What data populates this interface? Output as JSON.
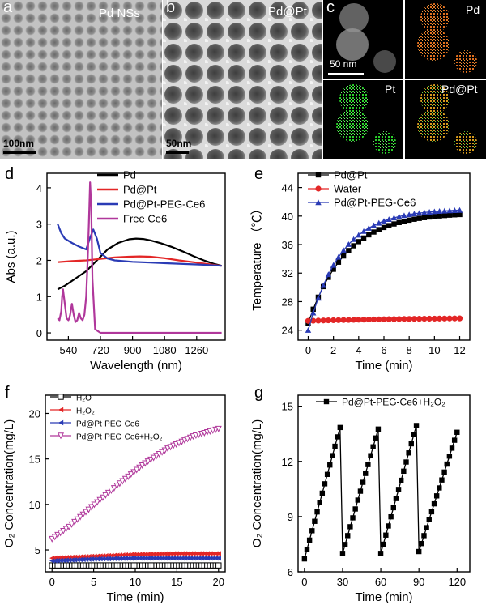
{
  "panels": {
    "a": {
      "letter": "a",
      "label": "Pd NSs",
      "scale": "100nm"
    },
    "b": {
      "letter": "b",
      "label": "Pd@Pt",
      "scale": "50nm"
    },
    "c": {
      "letter": "c",
      "scale": "50 nm",
      "maps": [
        "",
        "Pd",
        "Pt",
        "Pd@Pt"
      ]
    },
    "d": {
      "letter": "d"
    },
    "e": {
      "letter": "e"
    },
    "f": {
      "letter": "f"
    },
    "g": {
      "letter": "g"
    }
  },
  "chart_data": [
    {
      "id": "d",
      "type": "line",
      "xlabel": "Wavelength (nm)",
      "ylabel": "Abs (a.u.)",
      "xlim": [
        420,
        1420
      ],
      "ylim": [
        -0.2,
        4.4
      ],
      "xticks": [
        540,
        720,
        900,
        1080,
        1260
      ],
      "yticks": [
        0,
        1,
        2,
        3,
        4
      ],
      "legend_position": "top-right",
      "series": [
        {
          "name": "Pd",
          "color": "#000000",
          "x": [
            480,
            520,
            580,
            640,
            700,
            760,
            820,
            880,
            920,
            960,
            1000,
            1060,
            1120,
            1180,
            1240,
            1300,
            1360,
            1400
          ],
          "y": [
            1.2,
            1.3,
            1.5,
            1.7,
            2.0,
            2.3,
            2.48,
            2.58,
            2.6,
            2.59,
            2.55,
            2.47,
            2.37,
            2.25,
            2.12,
            2.0,
            1.9,
            1.85
          ]
        },
        {
          "name": "Pd@Pt",
          "color": "#e32626",
          "x": [
            480,
            560,
            640,
            720,
            800,
            880,
            940,
            1000,
            1080,
            1160,
            1240,
            1320,
            1400
          ],
          "y": [
            1.95,
            1.98,
            2.0,
            2.04,
            2.08,
            2.1,
            2.11,
            2.1,
            2.06,
            2.0,
            1.95,
            1.9,
            1.85
          ]
        },
        {
          "name": "Pd@Pt-PEG-Ce6",
          "color": "#2a3bb5",
          "x": [
            480,
            500,
            520,
            560,
            600,
            640,
            660,
            680,
            700,
            720,
            760,
            800,
            900,
            1000,
            1100,
            1200,
            1300,
            1400
          ],
          "y": [
            3.0,
            2.75,
            2.6,
            2.48,
            2.38,
            2.3,
            2.6,
            2.85,
            2.6,
            2.2,
            2.05,
            2.0,
            1.96,
            1.94,
            1.92,
            1.9,
            1.88,
            1.85
          ]
        },
        {
          "name": "Free Ce6",
          "color": "#b0379b",
          "x": [
            480,
            490,
            500,
            505,
            510,
            520,
            530,
            540,
            545,
            550,
            560,
            570,
            580,
            590,
            600,
            610,
            620,
            630,
            640,
            648,
            655,
            662,
            668,
            675,
            690,
            720,
            900,
            1100,
            1400
          ],
          "y": [
            0.4,
            0.35,
            0.6,
            1.0,
            1.2,
            0.8,
            0.4,
            0.35,
            0.4,
            0.5,
            0.8,
            0.5,
            0.3,
            0.35,
            0.55,
            0.4,
            0.35,
            0.5,
            1.0,
            2.0,
            3.0,
            4.15,
            3.5,
            1.5,
            0.1,
            0.0,
            0.0,
            0.0,
            0.0
          ]
        }
      ]
    },
    {
      "id": "e",
      "type": "line",
      "xlabel": "Time (min)",
      "ylabel": "Temperature （℃）",
      "xlim": [
        -0.8,
        12.8
      ],
      "ylim": [
        22.6,
        46
      ],
      "xticks": [
        0,
        2,
        4,
        6,
        8,
        10,
        12
      ],
      "yticks": [
        24,
        28,
        32,
        36,
        40,
        44
      ],
      "legend_position": "top-left",
      "series": [
        {
          "name": "Pd@Pt",
          "color": "#000000",
          "marker": "square",
          "model": [
            25,
            40.5,
            3.0
          ]
        },
        {
          "name": "Water",
          "color": "#e32626",
          "marker": "circle",
          "model": [
            25.3,
            25.8,
            10.0
          ]
        },
        {
          "name": "Pd@Pt-PEG-Ce6",
          "color": "#2a3bb5",
          "marker": "triangle",
          "model": [
            24,
            41.0,
            2.6
          ]
        }
      ]
    },
    {
      "id": "f",
      "type": "line",
      "xlabel": "Time (min)",
      "ylabel": "O₂ Concentration(mg/L)",
      "xlim": [
        -0.8,
        20.8
      ],
      "ylim": [
        2.6,
        22
      ],
      "xticks": [
        0,
        5,
        10,
        15,
        20
      ],
      "yticks": [
        5,
        10,
        15,
        20
      ],
      "legend_position": "top-left",
      "series": [
        {
          "name": "H₂O",
          "color": "#000000",
          "marker": "square-open",
          "x": [
            0,
            5,
            10,
            15,
            20
          ],
          "y": [
            3.3,
            3.3,
            3.3,
            3.3,
            3.3
          ]
        },
        {
          "name": "H₂O₂",
          "color": "#e32626",
          "marker": "triangle-left",
          "x": [
            0,
            5,
            10,
            15,
            20
          ],
          "y": [
            4.1,
            4.3,
            4.5,
            4.6,
            4.6
          ]
        },
        {
          "name": "Pd@Pt-PEG-Ce6",
          "color": "#2a3bb5",
          "marker": "triangle-left",
          "x": [
            0,
            5,
            10,
            15,
            20
          ],
          "y": [
            3.8,
            4.0,
            4.1,
            4.1,
            4.1
          ]
        },
        {
          "name": "Pd@Pt-PEG-Ce6+H₂O₂",
          "color": "#b0379b",
          "marker": "triangle-down-open",
          "x": [
            0,
            2,
            5,
            8,
            11,
            14,
            17,
            20
          ],
          "y": [
            6.2,
            7.5,
            9.9,
            12.2,
            14.4,
            16.2,
            17.5,
            18.3
          ]
        }
      ]
    },
    {
      "id": "g",
      "type": "line",
      "xlabel": "Time (min)",
      "ylabel": "O₂ Concentration(mg/L)",
      "xlim": [
        -5,
        130
      ],
      "ylim": [
        6,
        15.6
      ],
      "xticks": [
        0,
        30,
        60,
        90,
        120
      ],
      "yticks": [
        6,
        9,
        12,
        15
      ],
      "legend_position": "top-right",
      "series": [
        {
          "name": "Pd@Pt-PEG-Ce6+H₂O₂",
          "color": "#000000",
          "marker": "square",
          "cycles": [
            [
              0,
              29,
              6.7,
              14.1
            ],
            [
              30,
              59,
              7.0,
              14.0
            ],
            [
              60,
              89,
              7.0,
              14.2
            ],
            [
              90,
              121,
              7.1,
              13.8
            ]
          ]
        }
      ]
    }
  ]
}
